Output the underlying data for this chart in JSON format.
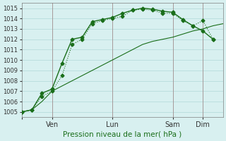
{
  "title": "",
  "xlabel": "Pression niveau de la mer( hPa )",
  "ylabel": "",
  "bg_color": "#d8f0f0",
  "grid_color": "#b0d8d8",
  "line_color": "#1a6e1a",
  "ylim": [
    1004.5,
    1015.5
  ],
  "yticks": [
    1005,
    1006,
    1007,
    1008,
    1009,
    1010,
    1011,
    1012,
    1013,
    1014,
    1015
  ],
  "xtick_positions": [
    0,
    3,
    9,
    15,
    18
  ],
  "xtick_labels": [
    "",
    "Ven",
    "Lun",
    "Sam",
    "Dim"
  ],
  "vlines": [
    3,
    9,
    15,
    18
  ],
  "line1_x": [
    0,
    1,
    2,
    3,
    4,
    5,
    6,
    7,
    8,
    9,
    10,
    11,
    12,
    13,
    14,
    15,
    16,
    17,
    18,
    19,
    20
  ],
  "line1_y": [
    1005.0,
    1005.2,
    1006.0,
    1007.0,
    1007.5,
    1008.0,
    1008.5,
    1009.0,
    1009.5,
    1010.0,
    1010.5,
    1011.0,
    1011.5,
    1011.8,
    1012.0,
    1012.2,
    1012.5,
    1012.8,
    1013.0,
    1013.3,
    1013.5
  ],
  "line2_x": [
    0,
    1,
    2,
    3,
    4,
    5,
    6,
    7,
    8,
    9,
    10,
    11,
    12,
    13,
    14,
    15,
    16,
    17,
    18,
    19
  ],
  "line2_y": [
    1005.0,
    1005.2,
    1006.5,
    1007.0,
    1008.5,
    1011.5,
    1012.0,
    1013.5,
    1013.8,
    1014.0,
    1014.2,
    1014.8,
    1014.9,
    1014.8,
    1014.5,
    1014.5,
    1013.8,
    1013.3,
    1013.8,
    1012.0
  ],
  "line3_x": [
    0,
    1,
    2,
    3,
    4,
    5,
    6,
    7,
    8,
    9,
    10,
    11,
    12,
    13,
    14,
    15,
    16,
    17,
    18,
    19
  ],
  "line3_y": [
    1005.0,
    1005.2,
    1006.8,
    1007.2,
    1009.7,
    1012.0,
    1012.2,
    1013.7,
    1013.9,
    1014.1,
    1014.5,
    1014.8,
    1015.0,
    1014.9,
    1014.7,
    1014.6,
    1013.9,
    1013.3,
    1012.8,
    1012.0
  ]
}
